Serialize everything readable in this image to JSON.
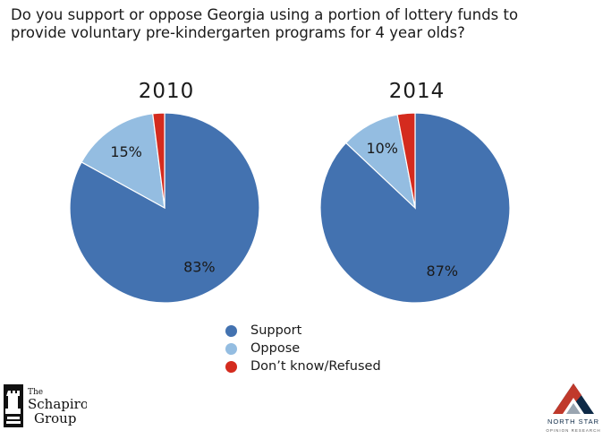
{
  "question": {
    "line1": "Do you support or oppose Georgia using a portion of lottery funds to",
    "line2": "provide voluntary pre-kindergarten programs for 4 year olds?"
  },
  "colors": {
    "support": "#4372b0",
    "oppose": "#94bde1",
    "dont_know": "#d42b1e"
  },
  "chart_data": [
    {
      "type": "pie",
      "title": "2010",
      "labels": [
        "Support",
        "Oppose",
        "Don't know/Refused"
      ],
      "values": [
        83,
        15,
        2
      ],
      "data_labels": [
        "83%",
        "15%",
        ""
      ]
    },
    {
      "type": "pie",
      "title": "2014",
      "labels": [
        "Support",
        "Oppose",
        "Don't know/Refused"
      ],
      "values": [
        87,
        10,
        3
      ],
      "data_labels": [
        "87%",
        "10%",
        ""
      ]
    }
  ],
  "legend": {
    "items": [
      {
        "label": "Support",
        "color": "#4372b0"
      },
      {
        "label": "Oppose",
        "color": "#94bde1"
      },
      {
        "label": "Don’t know/Refused",
        "color": "#d42b1e"
      }
    ]
  },
  "logos": {
    "left": {
      "line1": "The",
      "line2": "Schapiro",
      "line3": "Group",
      "icon": "rook-chess-piece-icon"
    },
    "right": {
      "line1": "NORTH STAR",
      "line2": "OPINION RESEARCH",
      "icon": "north-star-triangle-icon"
    }
  }
}
